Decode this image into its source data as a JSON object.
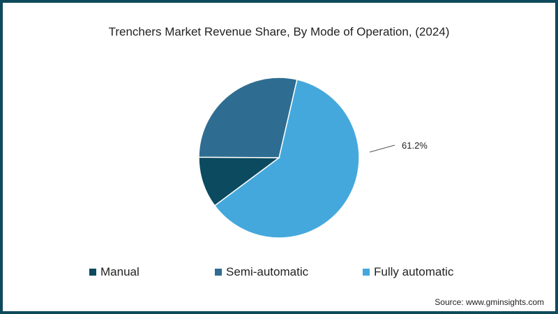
{
  "chart_data": {
    "type": "pie",
    "title": "Trenchers Market Revenue Share, By Mode of Operation, (2024)",
    "categories": [
      "Manual",
      "Semi-automatic",
      "Fully automatic"
    ],
    "values": [
      10.3,
      28.5,
      61.2
    ],
    "colors": [
      "#0b4a5f",
      "#2e6d91",
      "#45a8dc"
    ],
    "labels_shown": {
      "Fully automatic": "61.2%"
    },
    "legend_position": "bottom",
    "start_angle_deg": 13
  },
  "title": "Trenchers Market Revenue Share, By Mode of Operation, (2024)",
  "data_label": "61.2%",
  "legend": [
    {
      "label": "Manual",
      "color": "#0b4a5f"
    },
    {
      "label": "Semi-automatic",
      "color": "#2e6d91"
    },
    {
      "label": "Fully automatic",
      "color": "#45a8dc"
    }
  ],
  "source": "Source: www.gminsights.com",
  "border_color": "#0e4a5c"
}
